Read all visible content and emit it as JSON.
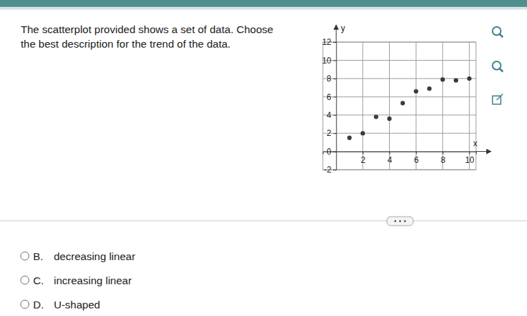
{
  "question": [
    "The scatterplot provided shows a set of data. Choose",
    "the best description for the trend of the data."
  ],
  "options": [
    {
      "letter": "B.",
      "text": "decreasing linear"
    },
    {
      "letter": "C.",
      "text": "increasing linear"
    },
    {
      "letter": "D.",
      "text": "U-shaped"
    }
  ],
  "chart_data": {
    "type": "scatter",
    "x_label": "x",
    "y_label": "y",
    "x": [
      1,
      2,
      3,
      4,
      5,
      6,
      7,
      8,
      9,
      10
    ],
    "values": [
      1.5,
      2,
      3.8,
      3.6,
      5.3,
      6.6,
      6.9,
      7.9,
      7.8,
      8
    ],
    "color": "#3a3a3a",
    "marker": "circle",
    "xlim": [
      -1,
      10.5
    ],
    "xticks": [
      2,
      4,
      6,
      8,
      10
    ],
    "ylim": [
      -2,
      12
    ],
    "yticks": [
      -2,
      0,
      2,
      4,
      6,
      8,
      10,
      12
    ],
    "grid": true
  }
}
